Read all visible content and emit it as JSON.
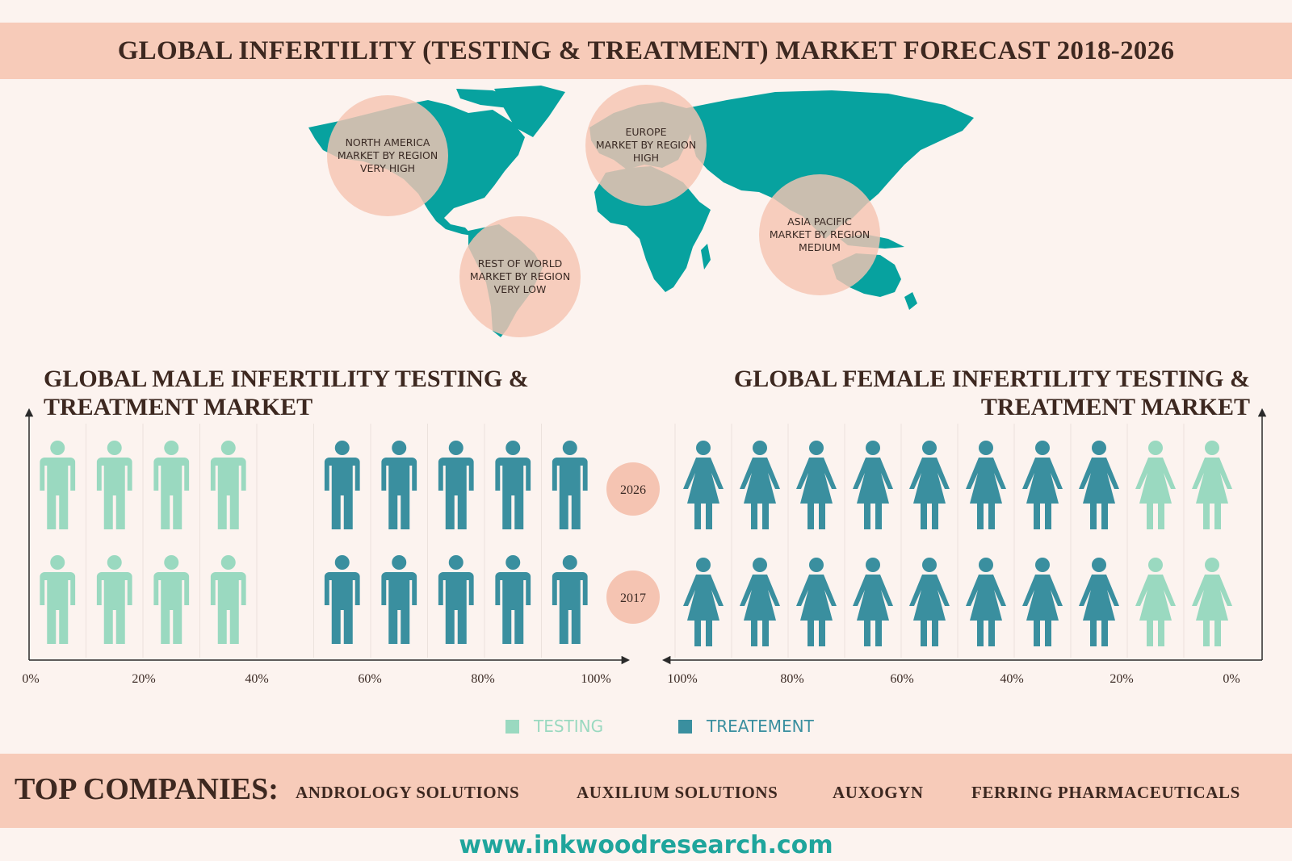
{
  "title": "GLOBAL INFERTILITY (TESTING & TREATMENT) MARKET FORECAST 2018-2026",
  "regions": [
    {
      "lines": [
        "NORTH AMERICA",
        "MARKET BY REGION",
        "VERY HIGH"
      ]
    },
    {
      "lines": [
        "EUROPE",
        "MARKET BY REGION",
        "HIGH"
      ]
    },
    {
      "lines": [
        "ASIA PACIFIC",
        "MARKET BY REGION",
        "MEDIUM"
      ]
    },
    {
      "lines": [
        "REST OF WORLD",
        "MARKET BY REGION",
        "VERY LOW"
      ]
    }
  ],
  "colors": {
    "testing": "#9ad9c0",
    "treatment": "#3a8f9f",
    "map": "#07a29f",
    "bubble": "#f5c4b2",
    "band": "#f7cbb9",
    "website": "#1fa59c"
  },
  "male": {
    "title_line1": "GLOBAL MALE INFERTILITY TESTING &",
    "title_line2": "TREATMENT MARKET"
  },
  "female": {
    "title_line1": "GLOBAL FEMALE INFERTILITY TESTING &",
    "title_line2": "TREATMENT MARKET"
  },
  "chart_data": [
    {
      "type": "bar",
      "title": "GLOBAL MALE INFERTILITY TESTING & TREATMENT MARKET",
      "categories": [
        "2026",
        "2017"
      ],
      "series": [
        {
          "name": "TESTING",
          "values": [
            45,
            45
          ]
        },
        {
          "name": "TREATEMENT",
          "values": [
            55,
            55
          ]
        }
      ],
      "x_ticks": [
        "0%",
        "20%",
        "40%",
        "60%",
        "80%",
        "100%"
      ],
      "xlim": [
        0,
        100
      ]
    },
    {
      "type": "bar",
      "title": "GLOBAL FEMALE INFERTILITY TESTING & TREATMENT MARKET",
      "categories": [
        "2026",
        "2017"
      ],
      "series": [
        {
          "name": "TESTING",
          "values": [
            20,
            20
          ]
        },
        {
          "name": "TREATEMENT",
          "values": [
            80,
            80
          ]
        }
      ],
      "x_ticks": [
        "100%",
        "80%",
        "60%",
        "40%",
        "20%",
        "0%"
      ],
      "xlim": [
        100,
        0
      ]
    }
  ],
  "legend": {
    "testing": "TESTING",
    "treatment": "TREATEMENT"
  },
  "companies": {
    "label": "TOP COMPANIES:",
    "names": [
      "ANDROLOGY SOLUTIONS",
      "AUXILIUM SOLUTIONS",
      "AUXOGYN",
      "FERRING PHARMACEUTICALS"
    ]
  },
  "website": "www.inkwoodresearch.com"
}
